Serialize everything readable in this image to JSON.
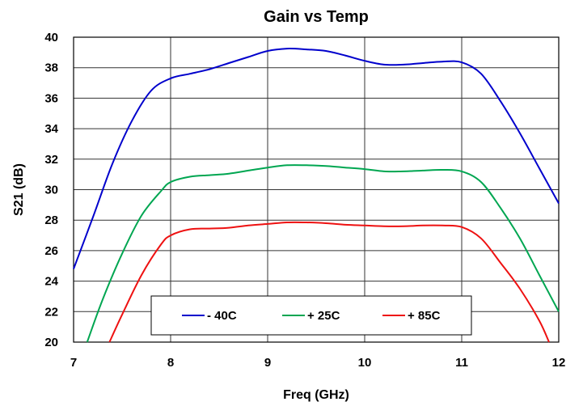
{
  "chart_data": {
    "type": "line",
    "title": "Gain vs Temp",
    "xlabel": "Freq (GHz)",
    "ylabel": "S21 (dB)",
    "xlim": [
      7,
      12
    ],
    "ylim": [
      20,
      40
    ],
    "xticks": [
      7,
      8,
      9,
      10,
      11,
      12
    ],
    "yticks": [
      20,
      22,
      24,
      26,
      28,
      30,
      32,
      34,
      36,
      38,
      40
    ],
    "grid": true,
    "legend_position": "bottom-center",
    "series": [
      {
        "name": "- 40C",
        "color": "#0000cc",
        "x": [
          7.0,
          7.2,
          7.4,
          7.6,
          7.8,
          8.0,
          8.2,
          8.4,
          8.6,
          8.8,
          9.0,
          9.2,
          9.4,
          9.6,
          9.8,
          10.0,
          10.2,
          10.4,
          10.6,
          10.8,
          11.0,
          11.2,
          11.4,
          11.6,
          11.8,
          12.0
        ],
        "y": [
          24.8,
          28.2,
          31.7,
          34.5,
          36.5,
          37.3,
          37.6,
          37.9,
          38.3,
          38.7,
          39.1,
          39.25,
          39.2,
          39.1,
          38.8,
          38.45,
          38.2,
          38.2,
          38.3,
          38.4,
          38.35,
          37.6,
          35.8,
          33.7,
          31.4,
          29.1
        ]
      },
      {
        "name": "+ 25C",
        "color": "#00a651",
        "x": [
          7.14,
          7.3,
          7.5,
          7.7,
          7.9,
          8.0,
          8.2,
          8.4,
          8.6,
          8.8,
          9.0,
          9.2,
          9.4,
          9.6,
          9.8,
          10.0,
          10.2,
          10.4,
          10.6,
          10.8,
          11.0,
          11.2,
          11.4,
          11.6,
          11.8,
          12.0
        ],
        "y": [
          20.0,
          22.8,
          25.8,
          28.3,
          29.9,
          30.5,
          30.85,
          30.95,
          31.05,
          31.25,
          31.45,
          31.6,
          31.6,
          31.55,
          31.45,
          31.35,
          31.2,
          31.2,
          31.25,
          31.3,
          31.2,
          30.5,
          28.8,
          26.8,
          24.4,
          22.0
        ]
      },
      {
        "name": "+ 85C",
        "color": "#ee1111",
        "x": [
          7.37,
          7.5,
          7.7,
          7.9,
          8.0,
          8.2,
          8.4,
          8.6,
          8.8,
          9.0,
          9.2,
          9.4,
          9.6,
          9.8,
          10.0,
          10.2,
          10.4,
          10.6,
          10.8,
          11.0,
          11.2,
          11.4,
          11.6,
          11.8,
          11.9
        ],
        "y": [
          20.0,
          21.8,
          24.4,
          26.4,
          27.0,
          27.4,
          27.45,
          27.5,
          27.65,
          27.75,
          27.85,
          27.85,
          27.8,
          27.7,
          27.65,
          27.6,
          27.6,
          27.65,
          27.65,
          27.55,
          26.8,
          25.2,
          23.5,
          21.4,
          20.0
        ]
      }
    ]
  }
}
